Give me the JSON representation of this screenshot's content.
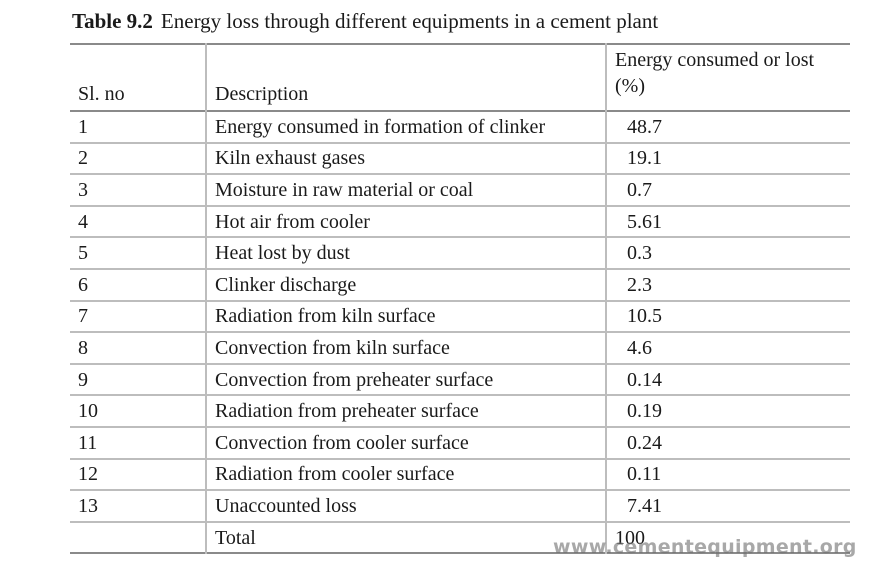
{
  "caption": {
    "label": "Table 9.2",
    "text": "Energy loss through different equipments in a cement plant"
  },
  "table": {
    "headers": {
      "sl_no": "Sl. no",
      "description": "Description",
      "energy_line1": "Energy consumed or lost",
      "energy_line2": "(%)"
    },
    "rows": [
      {
        "sl": "1",
        "description": "Energy consumed in formation of clinker",
        "value": "48.7"
      },
      {
        "sl": "2",
        "description": "Kiln exhaust gases",
        "value": "19.1"
      },
      {
        "sl": "3",
        "description": "Moisture in raw material or coal",
        "value": "0.7"
      },
      {
        "sl": "4",
        "description": "Hot air from cooler",
        "value": "5.61"
      },
      {
        "sl": "5",
        "description": "Heat lost by dust",
        "value": "0.3"
      },
      {
        "sl": "6",
        "description": "Clinker discharge",
        "value": "2.3"
      },
      {
        "sl": "7",
        "description": "Radiation from kiln surface",
        "value": "10.5"
      },
      {
        "sl": "8",
        "description": "Convection from kiln surface",
        "value": "4.6"
      },
      {
        "sl": "9",
        "description": "Convection from preheater surface",
        "value": "0.14"
      },
      {
        "sl": "10",
        "description": "Radiation from preheater surface",
        "value": "0.19"
      },
      {
        "sl": "11",
        "description": "Convection from cooler surface",
        "value": "0.24"
      },
      {
        "sl": "12",
        "description": "Radiation from cooler surface",
        "value": "0.11"
      },
      {
        "sl": "13",
        "description": "Unaccounted loss",
        "value": "7.41"
      }
    ],
    "total": {
      "sl": "",
      "description": "Total",
      "value": "100"
    }
  },
  "watermark": "www.cementequipment.org"
}
